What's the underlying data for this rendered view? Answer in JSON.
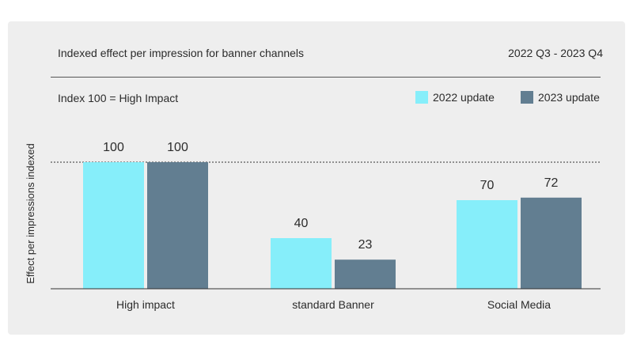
{
  "header": {
    "title": "Indexed effect per impression for banner channels",
    "period": "2022 Q3 - 2023 Q4",
    "note": "Index 100 = High Impact"
  },
  "colors": {
    "series_2022": "#86eefa",
    "series_2023": "#627e91",
    "background": "#eeeeee"
  },
  "chart_data": {
    "type": "bar",
    "title": "Indexed effect per impression for banner channels",
    "ylabel": "Effect per impressions indexed",
    "xlabel": "",
    "categories": [
      "High impact",
      "standard Banner",
      "Social Media"
    ],
    "series": [
      {
        "name": "2022 update",
        "values": [
          100,
          40,
          70
        ]
      },
      {
        "name": "2023 update",
        "values": [
          100,
          23,
          72
        ]
      }
    ],
    "ylim": [
      0,
      100
    ],
    "reference_line": 100,
    "grid": false,
    "legend_position": "top-right"
  }
}
